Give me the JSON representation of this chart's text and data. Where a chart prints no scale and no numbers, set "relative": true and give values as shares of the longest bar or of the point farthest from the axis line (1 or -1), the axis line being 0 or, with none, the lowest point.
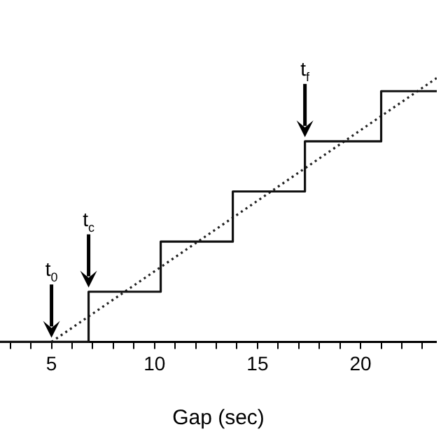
{
  "chart_data": {
    "type": "step",
    "relative": true,
    "xlabel": "Gap (sec)",
    "xlim": [
      2.5,
      23.7
    ],
    "xticks": [
      {
        "value": 3,
        "label": null
      },
      {
        "value": 4,
        "label": null
      },
      5,
      {
        "value": 6,
        "label": null
      },
      {
        "value": 7,
        "label": null
      },
      {
        "value": 8,
        "label": null
      },
      {
        "value": 9,
        "label": null
      },
      10,
      {
        "value": 11,
        "label": null
      },
      {
        "value": 12,
        "label": null
      },
      {
        "value": 13,
        "label": null
      },
      {
        "value": 14,
        "label": null
      },
      15,
      {
        "value": 16,
        "label": null
      },
      {
        "value": 17,
        "label": null
      },
      {
        "value": 18,
        "label": null
      },
      {
        "value": 19,
        "label": null
      },
      20,
      {
        "value": 21,
        "label": null
      },
      {
        "value": 22,
        "label": null
      },
      {
        "value": 23,
        "label": null
      }
    ],
    "tick_labels": "x",
    "grid": false,
    "legend": false,
    "series": [
      {
        "color": "#111111",
        "x": [
          2.5,
          6.8,
          10.3,
          13.8,
          17.3,
          21,
          23.7
        ],
        "values": [
          0,
          0.19,
          0.38,
          0.57,
          0.76,
          0.95,
          0.95
        ],
        "line_style": "solid"
      },
      {
        "type": "line",
        "color": "#222222",
        "x": [
          5,
          23.7
        ],
        "values": [
          0,
          1
        ],
        "line_style": "dotted"
      }
    ],
    "annotations": [
      {
        "text": "t$_{0}$",
        "x": 5,
        "y": 0
      },
      {
        "text": "t$_{c}$",
        "x": 6.8,
        "y": 0.19
      },
      {
        "text": "t$_{f}$",
        "x": 17.3,
        "y": 0.76
      }
    ]
  }
}
